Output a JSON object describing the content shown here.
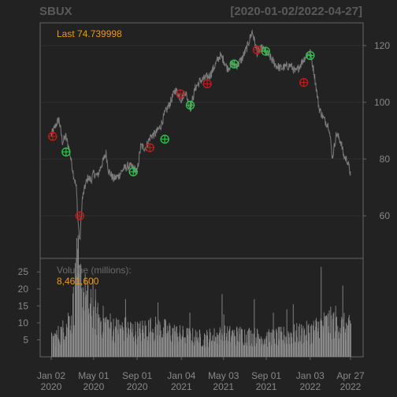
{
  "chart_data": [
    {
      "type": "line",
      "name": "price",
      "title": "SBUX",
      "date_range": "[2020-01-02/2022-04-27]",
      "last_label": "Last 74.739998",
      "ylim": [
        45,
        128
      ],
      "y_ticks": [
        60,
        80,
        100,
        120
      ],
      "x_range": [
        "2020-01-02",
        "2022-04-27"
      ],
      "x_ticks": [
        {
          "date": "2020-01-02",
          "l1": "Jan 02",
          "l2": "2020"
        },
        {
          "date": "2020-05-01",
          "l1": "May 01",
          "l2": "2020"
        },
        {
          "date": "2020-09-01",
          "l1": "Sep 01",
          "l2": "2020"
        },
        {
          "date": "2021-01-04",
          "l1": "Jan 04",
          "l2": "2021"
        },
        {
          "date": "2021-05-03",
          "l1": "May 03",
          "l2": "2021"
        },
        {
          "date": "2021-09-01",
          "l1": "Sep 01",
          "l2": "2021"
        },
        {
          "date": "2022-01-03",
          "l1": "Jan 03",
          "l2": "2022"
        },
        {
          "date": "2022-04-27",
          "l1": "Apr 27",
          "l2": "2022"
        }
      ],
      "series": [
        {
          "points": [
            [
              "2020-01-02",
              88.5
            ],
            [
              "2020-01-10",
              90.5
            ],
            [
              "2020-01-17",
              92.5
            ],
            [
              "2020-01-24",
              94.0
            ],
            [
              "2020-02-03",
              86.0
            ],
            [
              "2020-02-12",
              88.0
            ],
            [
              "2020-02-21",
              84.0
            ],
            [
              "2020-02-28",
              79.0
            ],
            [
              "2020-03-06",
              74.0
            ],
            [
              "2020-03-13",
              70.0
            ],
            [
              "2020-03-18",
              58.0
            ],
            [
              "2020-03-23",
              50.5
            ],
            [
              "2020-03-30",
              66.0
            ],
            [
              "2020-04-08",
              71.0
            ],
            [
              "2020-04-15",
              73.5
            ],
            [
              "2020-04-24",
              72.5
            ],
            [
              "2020-05-01",
              75.0
            ],
            [
              "2020-05-12",
              74.0
            ],
            [
              "2020-05-22",
              77.5
            ],
            [
              "2020-06-05",
              82.0
            ],
            [
              "2020-06-12",
              76.0
            ],
            [
              "2020-06-26",
              73.0
            ],
            [
              "2020-07-10",
              74.0
            ],
            [
              "2020-07-24",
              76.5
            ],
            [
              "2020-08-07",
              77.5
            ],
            [
              "2020-08-21",
              77.0
            ],
            [
              "2020-09-01",
              75.5
            ],
            [
              "2020-09-11",
              84.5
            ],
            [
              "2020-09-25",
              84.0
            ],
            [
              "2020-10-09",
              88.0
            ],
            [
              "2020-10-23",
              89.0
            ],
            [
              "2020-11-06",
              91.5
            ],
            [
              "2020-11-20",
              96.5
            ],
            [
              "2020-12-04",
              100.0
            ],
            [
              "2020-12-18",
              104.5
            ],
            [
              "2021-01-04",
              101.0
            ],
            [
              "2021-01-15",
              104.0
            ],
            [
              "2021-01-29",
              97.5
            ],
            [
              "2021-02-12",
              105.0
            ],
            [
              "2021-02-26",
              107.5
            ],
            [
              "2021-03-12",
              108.5
            ],
            [
              "2021-03-26",
              109.5
            ],
            [
              "2021-04-09",
              113.0
            ],
            [
              "2021-04-23",
              116.5
            ],
            [
              "2021-05-03",
              115.0
            ],
            [
              "2021-05-14",
              112.0
            ],
            [
              "2021-05-28",
              113.5
            ],
            [
              "2021-06-11",
              113.0
            ],
            [
              "2021-06-25",
              115.5
            ],
            [
              "2021-07-09",
              119.5
            ],
            [
              "2021-07-23",
              125.0
            ],
            [
              "2021-07-28",
              122.5
            ],
            [
              "2021-08-06",
              117.5
            ],
            [
              "2021-08-20",
              119.0
            ],
            [
              "2021-09-01",
              117.5
            ],
            [
              "2021-09-14",
              115.5
            ],
            [
              "2021-09-28",
              113.0
            ],
            [
              "2021-10-12",
              112.0
            ],
            [
              "2021-10-26",
              112.5
            ],
            [
              "2021-11-09",
              113.0
            ],
            [
              "2021-11-23",
              110.5
            ],
            [
              "2021-12-07",
              113.5
            ],
            [
              "2021-12-20",
              116.0
            ],
            [
              "2022-01-03",
              117.5
            ],
            [
              "2022-01-14",
              110.5
            ],
            [
              "2022-01-28",
              98.0
            ],
            [
              "2022-02-11",
              94.0
            ],
            [
              "2022-02-25",
              91.5
            ],
            [
              "2022-03-07",
              80.5
            ],
            [
              "2022-03-18",
              89.0
            ],
            [
              "2022-03-31",
              86.0
            ],
            [
              "2022-04-08",
              81.0
            ],
            [
              "2022-04-18",
              79.5
            ],
            [
              "2022-04-27",
              74.739998
            ]
          ]
        }
      ],
      "marker_colors": {
        "sell": "#c41a1a",
        "buy": "#2ec24a"
      },
      "markers": [
        {
          "date": "2020-01-06",
          "y": 88,
          "kind": "sell"
        },
        {
          "date": "2020-02-13",
          "y": 82.5,
          "kind": "buy"
        },
        {
          "date": "2020-03-23",
          "y": 60,
          "kind": "sell"
        },
        {
          "date": "2020-08-21",
          "y": 75.5,
          "kind": "buy"
        },
        {
          "date": "2020-10-07",
          "y": 84,
          "kind": "sell"
        },
        {
          "date": "2020-11-18",
          "y": 87,
          "kind": "buy"
        },
        {
          "date": "2021-01-01",
          "y": 103,
          "kind": "sell"
        },
        {
          "date": "2021-01-29",
          "y": 99,
          "kind": "buy"
        },
        {
          "date": "2021-03-18",
          "y": 106.5,
          "kind": "sell"
        },
        {
          "date": "2021-06-02",
          "y": 113.5,
          "kind": "buy"
        },
        {
          "date": "2021-08-06",
          "y": 118.5,
          "kind": "sell"
        },
        {
          "date": "2021-08-30",
          "y": 118,
          "kind": "buy"
        },
        {
          "date": "2021-12-16",
          "y": 107,
          "kind": "sell"
        },
        {
          "date": "2022-01-03",
          "y": 116.5,
          "kind": "buy"
        }
      ]
    },
    {
      "type": "bar",
      "name": "volume",
      "label": "Volume (millions):",
      "last_label": "8,461,600",
      "ylim": [
        0,
        29
      ],
      "y_ticks": [
        5,
        10,
        15,
        20,
        25
      ],
      "envelope": [
        [
          "2020-01-02",
          5.5
        ],
        [
          "2020-02-01",
          8
        ],
        [
          "2020-03-01",
          14
        ],
        [
          "2020-03-15",
          28
        ],
        [
          "2020-04-01",
          20
        ],
        [
          "2020-05-01",
          13
        ],
        [
          "2020-06-01",
          11
        ],
        [
          "2020-07-01",
          9
        ],
        [
          "2020-08-01",
          9
        ],
        [
          "2020-09-01",
          8
        ],
        [
          "2020-10-01",
          9
        ],
        [
          "2020-11-01",
          9
        ],
        [
          "2020-12-01",
          8
        ],
        [
          "2021-01-01",
          7
        ],
        [
          "2021-03-01",
          6
        ],
        [
          "2021-05-01",
          7
        ],
        [
          "2021-07-01",
          7
        ],
        [
          "2021-09-01",
          6
        ],
        [
          "2021-11-01",
          7
        ],
        [
          "2022-01-01",
          8
        ],
        [
          "2022-02-01",
          10
        ],
        [
          "2022-03-01",
          11
        ],
        [
          "2022-04-27",
          9
        ]
      ],
      "spikes": [
        [
          "2020-02-20",
          12
        ],
        [
          "2020-03-12",
          29
        ],
        [
          "2020-03-20",
          27
        ],
        [
          "2020-04-28",
          23
        ],
        [
          "2020-05-05",
          20
        ],
        [
          "2020-07-29",
          17
        ],
        [
          "2020-10-29",
          16
        ],
        [
          "2021-01-27",
          13
        ],
        [
          "2021-04-28",
          18.5
        ],
        [
          "2021-05-03",
          12.5
        ],
        [
          "2021-07-28",
          17
        ],
        [
          "2021-09-20",
          13
        ],
        [
          "2021-10-28",
          14
        ],
        [
          "2021-11-15",
          15.5
        ],
        [
          "2022-02-02",
          26.5
        ],
        [
          "2022-03-15",
          15
        ],
        [
          "2022-04-04",
          21
        ]
      ]
    }
  ]
}
